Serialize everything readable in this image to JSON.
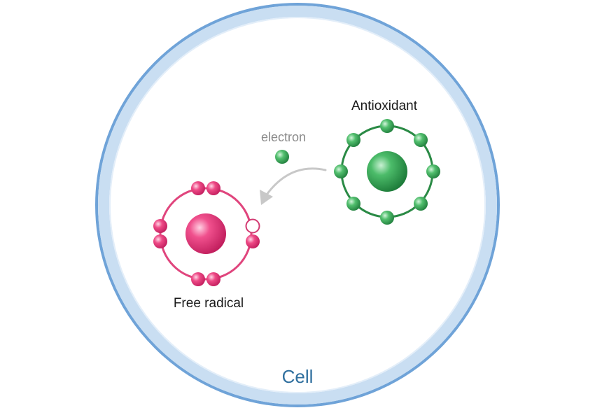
{
  "labels": {
    "antioxidant": "Antioxidant",
    "electron": "electron",
    "free_radical": "Free radical",
    "cell": "Cell"
  },
  "colors": {
    "cell_border": "#6fa3d8",
    "cell_band": "#c9def2",
    "antioxidant_ring": "#2a8a45",
    "antioxidant_electron": "#3fa85a",
    "free_radical_ring": "#e0457d",
    "free_radical_electron": "#e63b7a",
    "arrow": "#c8c8c8",
    "electron_label": "#8a8a8a",
    "cell_label": "#2f6f9e"
  }
}
